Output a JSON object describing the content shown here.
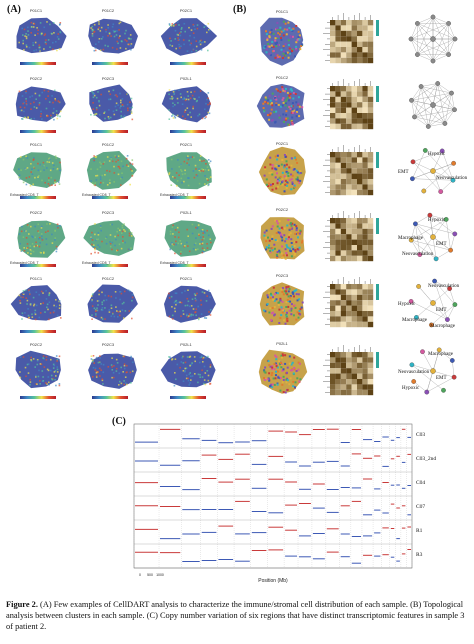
{
  "panel_labels": {
    "a": "(A)",
    "b": "(B)",
    "c": "(C)"
  },
  "panel_a": {
    "rows": [
      {
        "titles": [
          "P01C1",
          "P01C2",
          "P02C1"
        ],
        "caption": "",
        "palette": "blue"
      },
      {
        "titles": [
          "P02C2",
          "P02C3",
          "P02L1"
        ],
        "caption": "",
        "palette": "blue"
      },
      {
        "titles": [
          "P01C1",
          "P01C2",
          "P02C1"
        ],
        "caption": "Exhausted CD8_T",
        "palette": "green"
      },
      {
        "titles": [
          "P02C2",
          "P02C3",
          "P02L1"
        ],
        "caption": "Exhausted CD8_T",
        "palette": "green"
      },
      {
        "titles": [
          "P01C1",
          "P01C2",
          "P02C1"
        ],
        "caption": "",
        "palette": "blue"
      },
      {
        "titles": [
          "P02C2",
          "P02C3",
          "P02L1"
        ],
        "caption": "",
        "palette": "blue"
      }
    ]
  },
  "panel_b": {
    "rows": [
      {
        "title": "P01C1",
        "labels": []
      },
      {
        "title": "P01C2",
        "labels": []
      },
      {
        "title": "P02C1",
        "labels": [
          "Hypoxic",
          "EMT",
          "Neovasculation"
        ]
      },
      {
        "title": "P02C2",
        "labels": [
          "Hypoxic",
          "Macrophage",
          "EMT",
          "Neovasculation"
        ]
      },
      {
        "title": "P02C3",
        "labels": [
          "Neovasculation",
          "Hypoxic",
          "EMT",
          "Macrophage",
          "Macrophage"
        ]
      },
      {
        "title": "P02L1",
        "labels": [
          "Macrophage",
          "Neovasculation",
          "EMT",
          "Hypoxic"
        ]
      }
    ]
  },
  "panel_c": {
    "row_labels": [
      "C03",
      "C03_2nd",
      "C04",
      "C07",
      "R1",
      "R3"
    ],
    "xlabel": "Position (Mb)",
    "axis_ticks": [
      "0",
      "500",
      "1000"
    ]
  },
  "caption": {
    "lead": "Figure 2.",
    "text": " (A) Few examples of CellDART analysis to characterize the immune/stromal cell distribution of each sample. (B) Topological analysis between clusters in each sample. (C) Copy number variation of six regions that have distinct transcriptomic features in sample 3 of patient 2."
  },
  "colors": {
    "tissue_blue": "#4a5aa8",
    "tissue_green": "#5fa886",
    "heat_dark": "#6b4315",
    "heat_light": "#f3e2bb",
    "cnv_red": "#c93a3a",
    "cnv_blue": "#3d59b5"
  }
}
